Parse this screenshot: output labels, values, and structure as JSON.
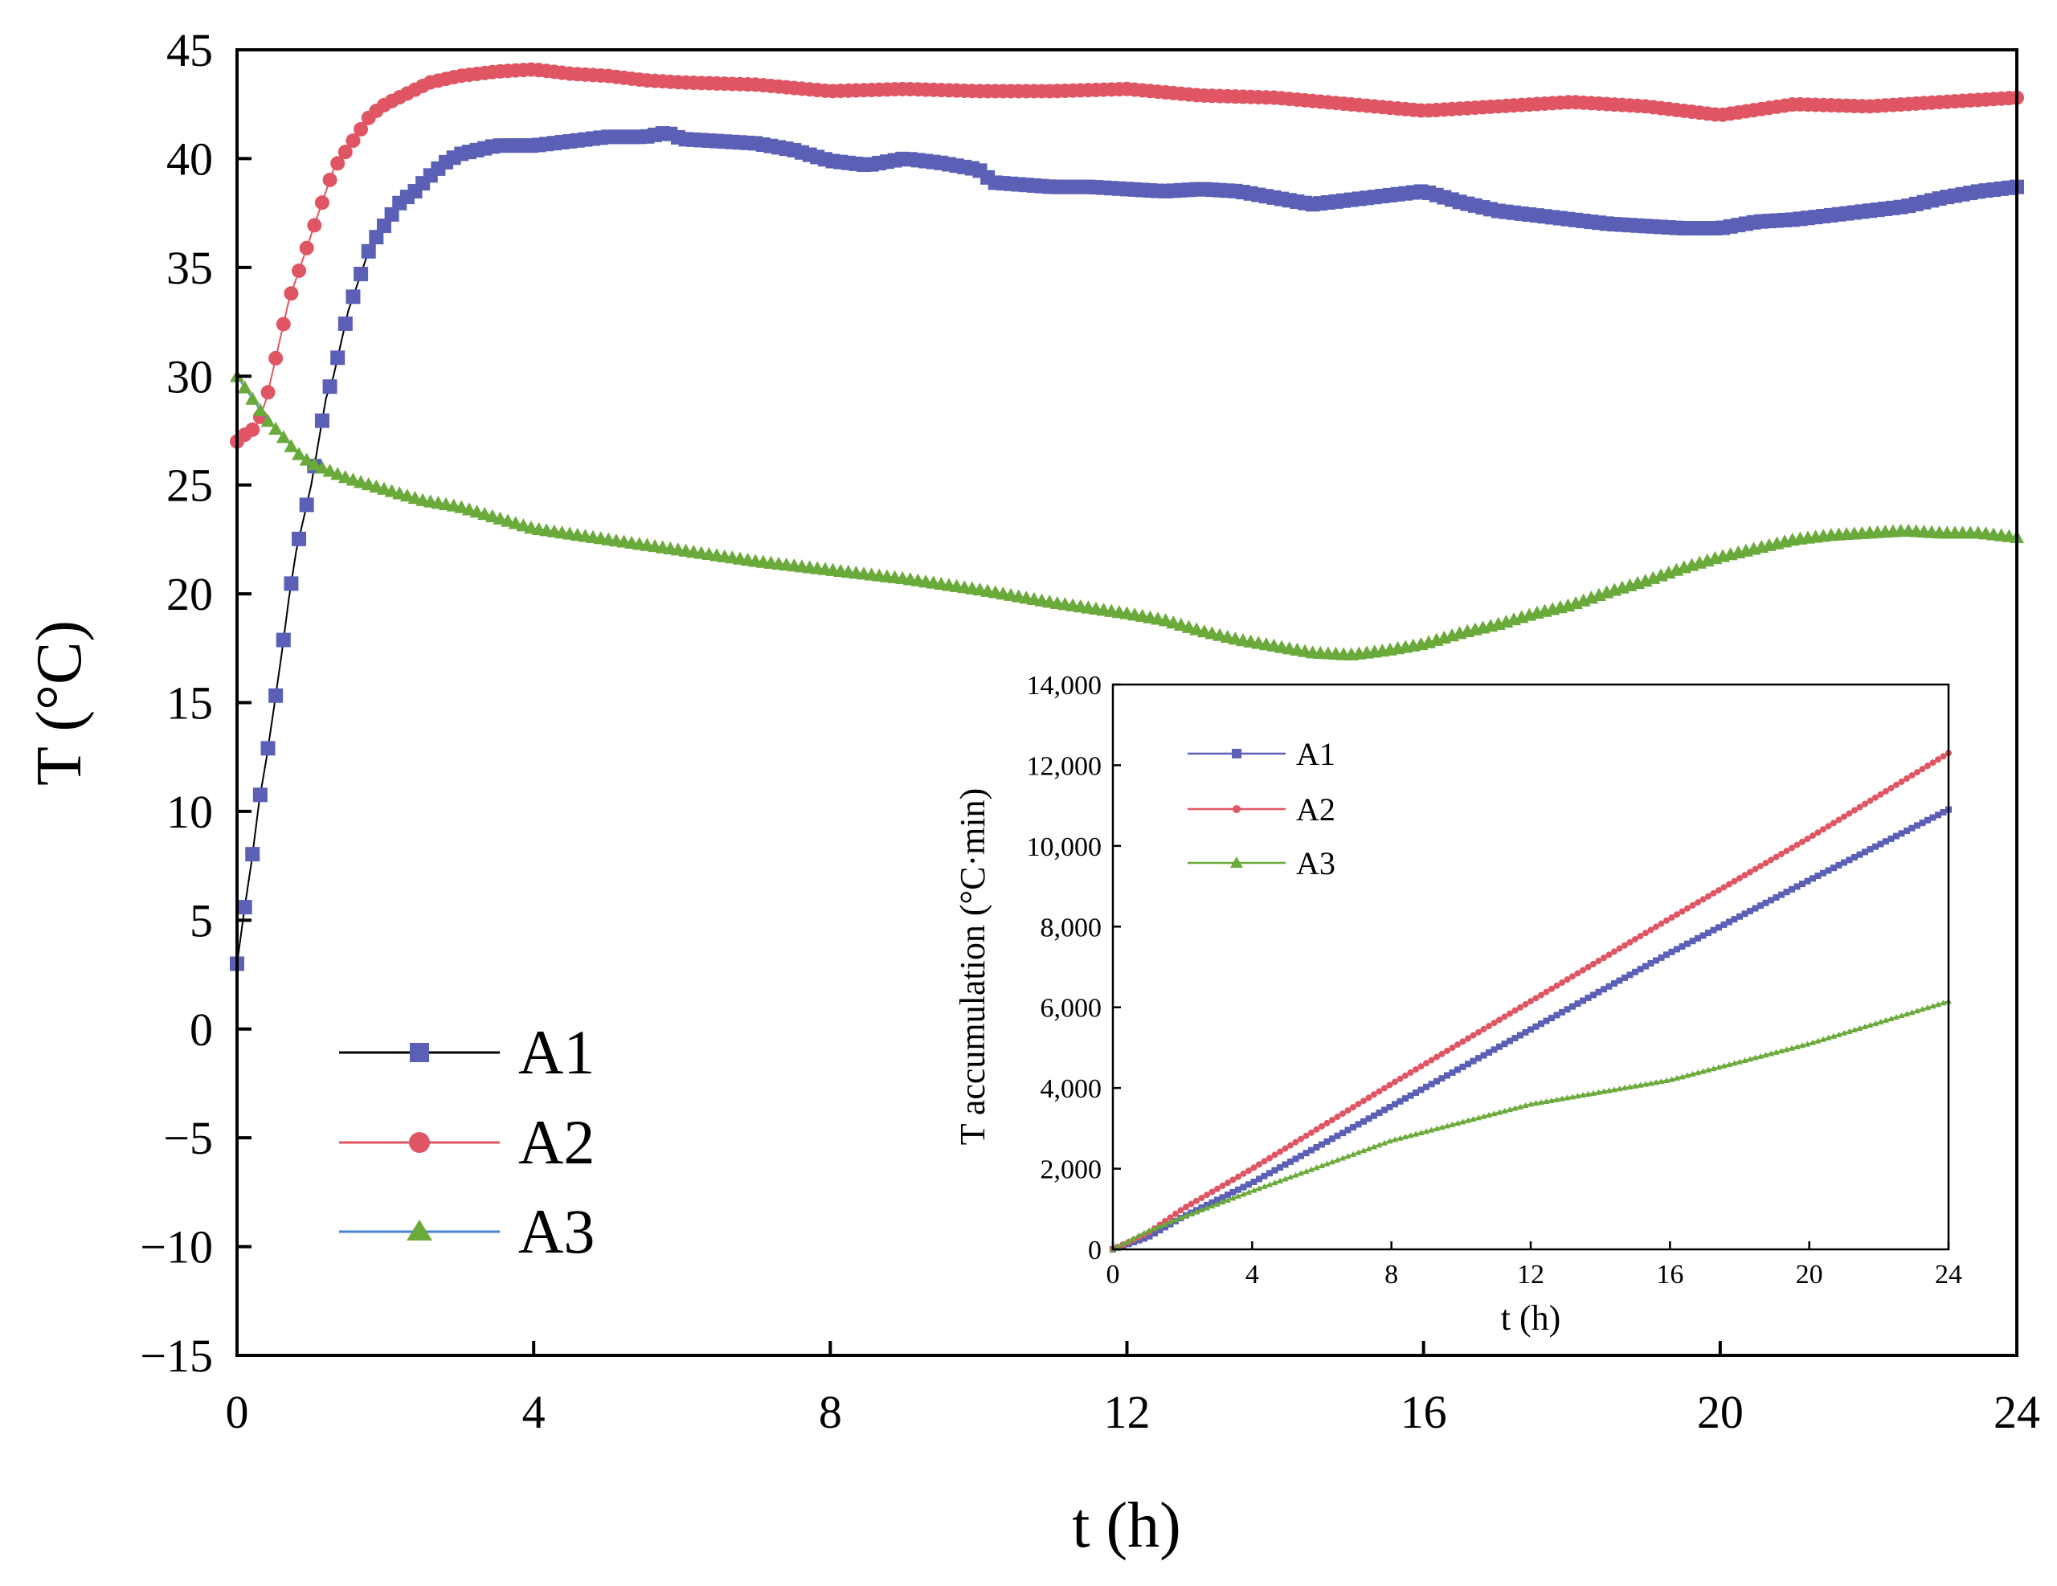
{
  "chart_data": [
    {
      "type": "line",
      "panel": "main",
      "xlabel": "t (h)",
      "ylabel": "T (°C)",
      "xlim": [
        0,
        24
      ],
      "ylim": [
        -15,
        45
      ],
      "x_ticks": [
        "0",
        "4",
        "8",
        "12",
        "16",
        "20",
        "24"
      ],
      "y_ticks": [
        "−15",
        "−10",
        "−5",
        "0",
        "5",
        "10",
        "15",
        "20",
        "25",
        "30",
        "35",
        "40",
        "45"
      ],
      "legend_position": "lower-left",
      "series": [
        {
          "name": "A1",
          "color": "#5b5fb5",
          "line_color": "#000000",
          "marker": "square",
          "points": [
            [
              0,
              3
            ],
            [
              0.1,
              5.5
            ],
            [
              0.2,
              7.8
            ],
            [
              0.3,
              10.5
            ],
            [
              0.4,
              12.5
            ],
            [
              0.5,
              14.8
            ],
            [
              0.6,
              17.2
            ],
            [
              0.7,
              19.8
            ],
            [
              0.8,
              22
            ],
            [
              0.9,
              23.5
            ],
            [
              1,
              25
            ],
            [
              1.1,
              27
            ],
            [
              1.2,
              29
            ],
            [
              1.3,
              30
            ],
            [
              1.4,
              31.5
            ],
            [
              1.5,
              33
            ],
            [
              1.6,
              34
            ],
            [
              1.7,
              35
            ],
            [
              1.8,
              36
            ],
            [
              2,
              37
            ],
            [
              2.2,
              38
            ],
            [
              2.4,
              38.5
            ],
            [
              2.6,
              39.2
            ],
            [
              2.8,
              39.8
            ],
            [
              3,
              40.2
            ],
            [
              3.5,
              40.6
            ],
            [
              4,
              40.6
            ],
            [
              4.5,
              40.8
            ],
            [
              5,
              41
            ],
            [
              5.5,
              41
            ],
            [
              5.8,
              41.2
            ],
            [
              6,
              40.9
            ],
            [
              6.5,
              40.8
            ],
            [
              7,
              40.7
            ],
            [
              7.5,
              40.4
            ],
            [
              8,
              39.9
            ],
            [
              8.5,
              39.7
            ],
            [
              9,
              40
            ],
            [
              9.5,
              39.8
            ],
            [
              10,
              39.5
            ],
            [
              10.2,
              38.9
            ],
            [
              11,
              38.7
            ],
            [
              11.5,
              38.7
            ],
            [
              12,
              38.6
            ],
            [
              12.5,
              38.5
            ],
            [
              13,
              38.6
            ],
            [
              13.5,
              38.5
            ],
            [
              14,
              38.2
            ],
            [
              14.5,
              37.9
            ],
            [
              15,
              38.1
            ],
            [
              15.5,
              38.3
            ],
            [
              16,
              38.5
            ],
            [
              16.5,
              38
            ],
            [
              17,
              37.6
            ],
            [
              17.5,
              37.4
            ],
            [
              18,
              37.2
            ],
            [
              18.5,
              37
            ],
            [
              19,
              36.9
            ],
            [
              19.5,
              36.8
            ],
            [
              20,
              36.8
            ],
            [
              20.5,
              37.1
            ],
            [
              21,
              37.2
            ],
            [
              21.5,
              37.4
            ],
            [
              22,
              37.6
            ],
            [
              22.5,
              37.8
            ],
            [
              23,
              38.2
            ],
            [
              23.5,
              38.5
            ],
            [
              24,
              38.7
            ]
          ]
        },
        {
          "name": "A2",
          "color": "#e05563",
          "line_color": "#e05563",
          "marker": "circle",
          "points": [
            [
              0,
              27
            ],
            [
              0.1,
              27.3
            ],
            [
              0.2,
              27.5
            ],
            [
              0.3,
              28
            ],
            [
              0.4,
              29
            ],
            [
              0.5,
              30.5
            ],
            [
              0.6,
              32
            ],
            [
              0.7,
              33.5
            ],
            [
              0.8,
              34.5
            ],
            [
              0.9,
              35.5
            ],
            [
              1,
              36.5
            ],
            [
              1.1,
              37.5
            ],
            [
              1.2,
              38.5
            ],
            [
              1.3,
              39.5
            ],
            [
              1.4,
              40
            ],
            [
              1.5,
              40.5
            ],
            [
              1.6,
              41
            ],
            [
              1.7,
              41.5
            ],
            [
              1.8,
              42
            ],
            [
              2,
              42.5
            ],
            [
              2.3,
              43
            ],
            [
              2.6,
              43.5
            ],
            [
              3,
              43.8
            ],
            [
              3.5,
              44
            ],
            [
              4,
              44.1
            ],
            [
              4.5,
              43.9
            ],
            [
              5,
              43.8
            ],
            [
              5.5,
              43.6
            ],
            [
              6,
              43.5
            ],
            [
              7,
              43.4
            ],
            [
              8,
              43.1
            ],
            [
              9,
              43.2
            ],
            [
              10,
              43.1
            ],
            [
              11,
              43.1
            ],
            [
              12,
              43.2
            ],
            [
              13,
              42.9
            ],
            [
              14,
              42.8
            ],
            [
              15,
              42.5
            ],
            [
              16,
              42.2
            ],
            [
              17,
              42.4
            ],
            [
              18,
              42.6
            ],
            [
              19,
              42.4
            ],
            [
              20,
              42
            ],
            [
              21,
              42.5
            ],
            [
              22,
              42.4
            ],
            [
              23,
              42.6
            ],
            [
              24,
              42.8
            ]
          ]
        },
        {
          "name": "A3",
          "color": "#6aaa3a",
          "line_color": "#4a7fd4",
          "marker": "triangle",
          "points": [
            [
              0,
              30
            ],
            [
              0.2,
              29
            ],
            [
              0.4,
              28
            ],
            [
              0.6,
              27.3
            ],
            [
              0.8,
              26.5
            ],
            [
              1,
              26
            ],
            [
              1.5,
              25.3
            ],
            [
              2,
              24.8
            ],
            [
              2.5,
              24.3
            ],
            [
              3,
              24
            ],
            [
              3.5,
              23.5
            ],
            [
              4,
              23
            ],
            [
              5,
              22.5
            ],
            [
              6,
              22
            ],
            [
              7,
              21.5
            ],
            [
              8,
              21.1
            ],
            [
              9,
              20.7
            ],
            [
              10,
              20.2
            ],
            [
              11,
              19.6
            ],
            [
              12,
              19.1
            ],
            [
              12.5,
              18.8
            ],
            [
              13,
              18.3
            ],
            [
              13.5,
              17.9
            ],
            [
              14,
              17.6
            ],
            [
              14.5,
              17.3
            ],
            [
              15,
              17.2
            ],
            [
              15.5,
              17.4
            ],
            [
              16,
              17.7
            ],
            [
              16.5,
              18.2
            ],
            [
              17,
              18.6
            ],
            [
              17.5,
              19.1
            ],
            [
              18,
              19.5
            ],
            [
              18.5,
              20.1
            ],
            [
              19,
              20.6
            ],
            [
              19.5,
              21.2
            ],
            [
              20,
              21.7
            ],
            [
              20.5,
              22.1
            ],
            [
              21,
              22.5
            ],
            [
              21.5,
              22.7
            ],
            [
              22,
              22.8
            ],
            [
              22.5,
              22.9
            ],
            [
              23,
              22.8
            ],
            [
              23.5,
              22.8
            ],
            [
              24,
              22.6
            ]
          ]
        }
      ]
    },
    {
      "type": "line",
      "panel": "inset",
      "xlabel": "t (h)",
      "ylabel": "T accumulation (°C·min)",
      "xlim": [
        0,
        24
      ],
      "ylim": [
        0,
        14000
      ],
      "x_ticks": [
        "0",
        "4",
        "8",
        "12",
        "16",
        "20",
        "24"
      ],
      "y_ticks": [
        "0",
        "2,000",
        "4,000",
        "6,000",
        "8,000",
        "10,000",
        "12,000",
        "14,000"
      ],
      "legend_position": "top-left",
      "series": [
        {
          "name": "A1",
          "color": "#5b5fb5",
          "marker": "square",
          "points": [
            [
              0,
              0
            ],
            [
              1,
              300
            ],
            [
              2,
              800
            ],
            [
              4,
              1650
            ],
            [
              8,
              3550
            ],
            [
              12,
              5450
            ],
            [
              16,
              7350
            ],
            [
              20,
              9150
            ],
            [
              24,
              10900
            ]
          ]
        },
        {
          "name": "A2",
          "color": "#e05563",
          "marker": "circle",
          "points": [
            [
              0,
              0
            ],
            [
              1,
              400
            ],
            [
              2,
              1000
            ],
            [
              4,
              2000
            ],
            [
              8,
              4100
            ],
            [
              12,
              6150
            ],
            [
              16,
              8200
            ],
            [
              20,
              10200
            ],
            [
              24,
              12300
            ]
          ]
        },
        {
          "name": "A3",
          "color": "#6aaa3a",
          "marker": "triangle",
          "points": [
            [
              0,
              0
            ],
            [
              1,
              450
            ],
            [
              2,
              800
            ],
            [
              4,
              1450
            ],
            [
              8,
              2700
            ],
            [
              12,
              3600
            ],
            [
              16,
              4200
            ],
            [
              20,
              5100
            ],
            [
              24,
              6150
            ]
          ]
        }
      ]
    }
  ]
}
